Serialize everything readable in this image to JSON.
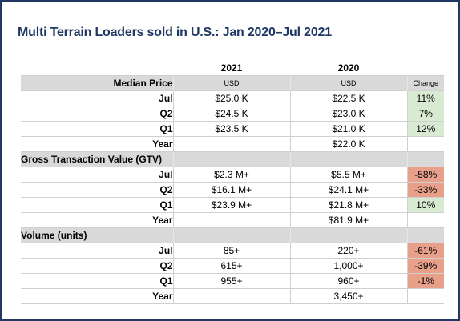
{
  "title": "Multi Terrain Loaders sold in U.S.: Jan 2020–Jul 2021",
  "header": {
    "col_2021": "2021",
    "col_2020": "2020"
  },
  "chart_data": {
    "type": "table",
    "title": "Multi Terrain Loaders sold in U.S.: Jan 2020–Jul 2021",
    "columns": [
      "2021",
      "2020",
      "Change"
    ],
    "sections": [
      {
        "name": "Median Price",
        "unit_2021": "USD",
        "unit_2020": "USD",
        "change_label": "Change",
        "rows": [
          {
            "label": "Jul",
            "v2021": "$25.0 K",
            "v2020": "$22.5 K",
            "change": "11%",
            "sign": "pos"
          },
          {
            "label": "Q2",
            "v2021": "$24.5 K",
            "v2020": "$23.0 K",
            "change": "7%",
            "sign": "pos"
          },
          {
            "label": "Q1",
            "v2021": "$23.5 K",
            "v2020": "$21.0 K",
            "change": "12%",
            "sign": "pos"
          },
          {
            "label": "Year",
            "v2021": "",
            "v2020": "$22.0 K",
            "change": "",
            "sign": "none"
          }
        ]
      },
      {
        "name": "Gross Transaction Value (GTV)",
        "rows": [
          {
            "label": "Jul",
            "v2021": "$2.3 M+",
            "v2020": "$5.5 M+",
            "change": "-58%",
            "sign": "neg"
          },
          {
            "label": "Q2",
            "v2021": "$16.1 M+",
            "v2020": "$24.1 M+",
            "change": "-33%",
            "sign": "neg"
          },
          {
            "label": "Q1",
            "v2021": "$23.9 M+",
            "v2020": "$21.8 M+",
            "change": "10%",
            "sign": "pos"
          },
          {
            "label": "Year",
            "v2021": "",
            "v2020": "$81.9 M+",
            "change": "",
            "sign": "none"
          }
        ]
      },
      {
        "name": "Volume (units)",
        "rows": [
          {
            "label": "Jul",
            "v2021": "85+",
            "v2020": "220+",
            "change": "-61%",
            "sign": "neg"
          },
          {
            "label": "Q2",
            "v2021": "615+",
            "v2020": "1,000+",
            "change": "-39%",
            "sign": "neg"
          },
          {
            "label": "Q1",
            "v2021": "955+",
            "v2020": "960+",
            "change": "-1%",
            "sign": "neg"
          },
          {
            "label": "Year",
            "v2021": "",
            "v2020": "3,450+",
            "change": "",
            "sign": "none"
          }
        ]
      }
    ]
  },
  "colors": {
    "title": "#1f3864",
    "frame": "#1f3864",
    "section_band": "#d9d9d9",
    "positive": "#d9ead3",
    "negative": "#e8a08a"
  }
}
